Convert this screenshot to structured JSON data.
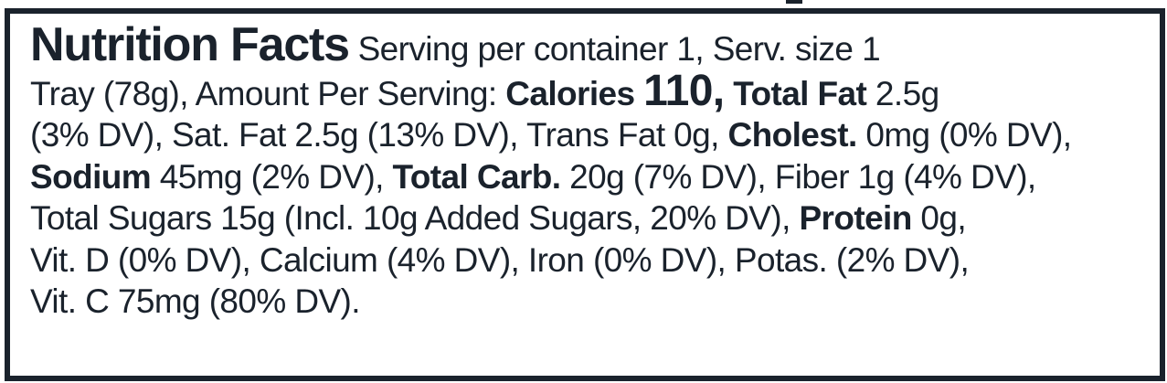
{
  "label": {
    "title": "Nutrition Facts",
    "serving_intro": " Serving per container 1, Serv. size 1",
    "serving_size_rest": "Tray (78g), Amount Per Serving: ",
    "calories_label": "Calories ",
    "calories_value": "110,",
    "total_fat_label": " Total Fat",
    "total_fat_value": " 2.5g",
    "total_fat_dv": "(3% DV), Sat. Fat 2.5g (13% DV), Trans Fat 0g, ",
    "cholest_label": "Cholest.",
    "cholest_value": " 0mg (0% DV),",
    "sodium_label": "Sodium",
    "sodium_value": " 45mg (2% DV), ",
    "carb_label": "Total Carb.",
    "carb_value": " 20g (7% DV), Fiber 1g (4% DV),",
    "sugars_text": "Total Sugars 15g (Incl. 10g Added Sugars, 20% DV), ",
    "protein_label": "Protein",
    "protein_value": " 0g,",
    "vitamins_line1": "Vit. D (0% DV), Calcium (4% DV), Iron (0% DV), Potas. (2% DV),",
    "vitamins_line2": "Vit. C 75mg (80% DV)."
  }
}
